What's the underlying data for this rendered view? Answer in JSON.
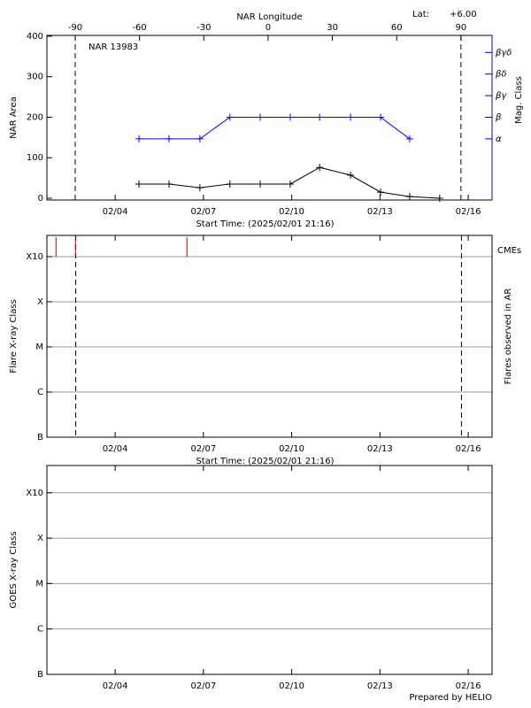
{
  "chart_data": [
    {
      "type": "line",
      "title": "NAR 13983",
      "lat_label": "Lat:",
      "lat_value": "+6.00",
      "xlabel": "Start Time: (2025/02/01 21:16)",
      "ylabel": "NAR Area",
      "y2label": "Mag. Class",
      "x2label": "NAR Longitude",
      "xlim": [
        1.68,
        16.81
      ],
      "xticks": [
        {
          "value": 4,
          "label": "02/04"
        },
        {
          "value": 7,
          "label": "02/07"
        },
        {
          "value": 10,
          "label": "02/10"
        },
        {
          "value": 13,
          "label": "02/13"
        },
        {
          "value": 16,
          "label": "02/16"
        }
      ],
      "ylim": [
        -4.4,
        402
      ],
      "yticks": [
        0,
        100,
        200,
        300,
        400
      ],
      "y2lim": [
        -1.83,
        5.79
      ],
      "y2ticks": [
        {
          "value": 1,
          "label": "α"
        },
        {
          "value": 2,
          "label": "β"
        },
        {
          "value": 3,
          "label": "βγ"
        },
        {
          "value": 4,
          "label": "βδ"
        },
        {
          "value": 5,
          "label": "βγδ"
        }
      ],
      "x2lim": [
        -103.2,
        104.5
      ],
      "x2ticks": [
        -90,
        -60,
        -30,
        0,
        30,
        60,
        90
      ],
      "limb_longitudes": [
        -90,
        90
      ],
      "x": [
        4.81,
        5.83,
        6.88,
        7.9,
        8.93,
        9.95,
        10.95,
        12.0,
        13.02,
        14.01,
        15.03
      ],
      "series": [
        {
          "color": "#000000",
          "values": [
            35,
            35,
            26,
            35,
            35,
            35,
            76,
            57,
            15,
            4,
            0
          ]
        },
        {
          "color": "#0000ff",
          "axis": "y2",
          "values": [
            1,
            1,
            1,
            2,
            2,
            2,
            2,
            2,
            2,
            1,
            null
          ]
        }
      ]
    },
    {
      "type": "event",
      "xlabel": "Start Time: (2025/02/01 21:16)",
      "ylabel": "Flare X-ray Class",
      "y2label": "Flares observed in AR",
      "cme_label": "CMEs",
      "cme_color": "#cc0000",
      "cme_times": [
        1.99,
        2.65,
        6.44
      ],
      "markers_x": [
        2.66,
        15.77
      ],
      "xlim": [
        1.68,
        16.81
      ],
      "xticks": [
        {
          "value": 4,
          "label": "02/04"
        },
        {
          "value": 7,
          "label": "02/07"
        },
        {
          "value": 10,
          "label": "02/10"
        },
        {
          "value": 13,
          "label": "02/13"
        },
        {
          "value": 16,
          "label": "02/16"
        }
      ],
      "ylim": [
        0,
        4.47
      ],
      "yticks": [
        {
          "value": 0,
          "label": "B"
        },
        {
          "value": 1,
          "label": "C"
        },
        {
          "value": 2,
          "label": "M"
        },
        {
          "value": 3,
          "label": "X"
        },
        {
          "value": 4,
          "label": "X10"
        }
      ],
      "grid": true
    },
    {
      "type": "event",
      "ylabel": "GOES X-ray Class",
      "note": "Prepared by HELIO",
      "xlim": [
        1.68,
        16.81
      ],
      "xticks": [
        {
          "value": 4,
          "label": "02/04"
        },
        {
          "value": 7,
          "label": "02/07"
        },
        {
          "value": 10,
          "label": "02/10"
        },
        {
          "value": 13,
          "label": "02/13"
        },
        {
          "value": 16,
          "label": "02/16"
        }
      ],
      "ylim": [
        0,
        4.6
      ],
      "yticks": [
        {
          "value": 0,
          "label": "B"
        },
        {
          "value": 1,
          "label": "C"
        },
        {
          "value": 2,
          "label": "M"
        },
        {
          "value": 3,
          "label": "X"
        },
        {
          "value": 4,
          "label": "X10"
        }
      ],
      "grid": true
    }
  ]
}
